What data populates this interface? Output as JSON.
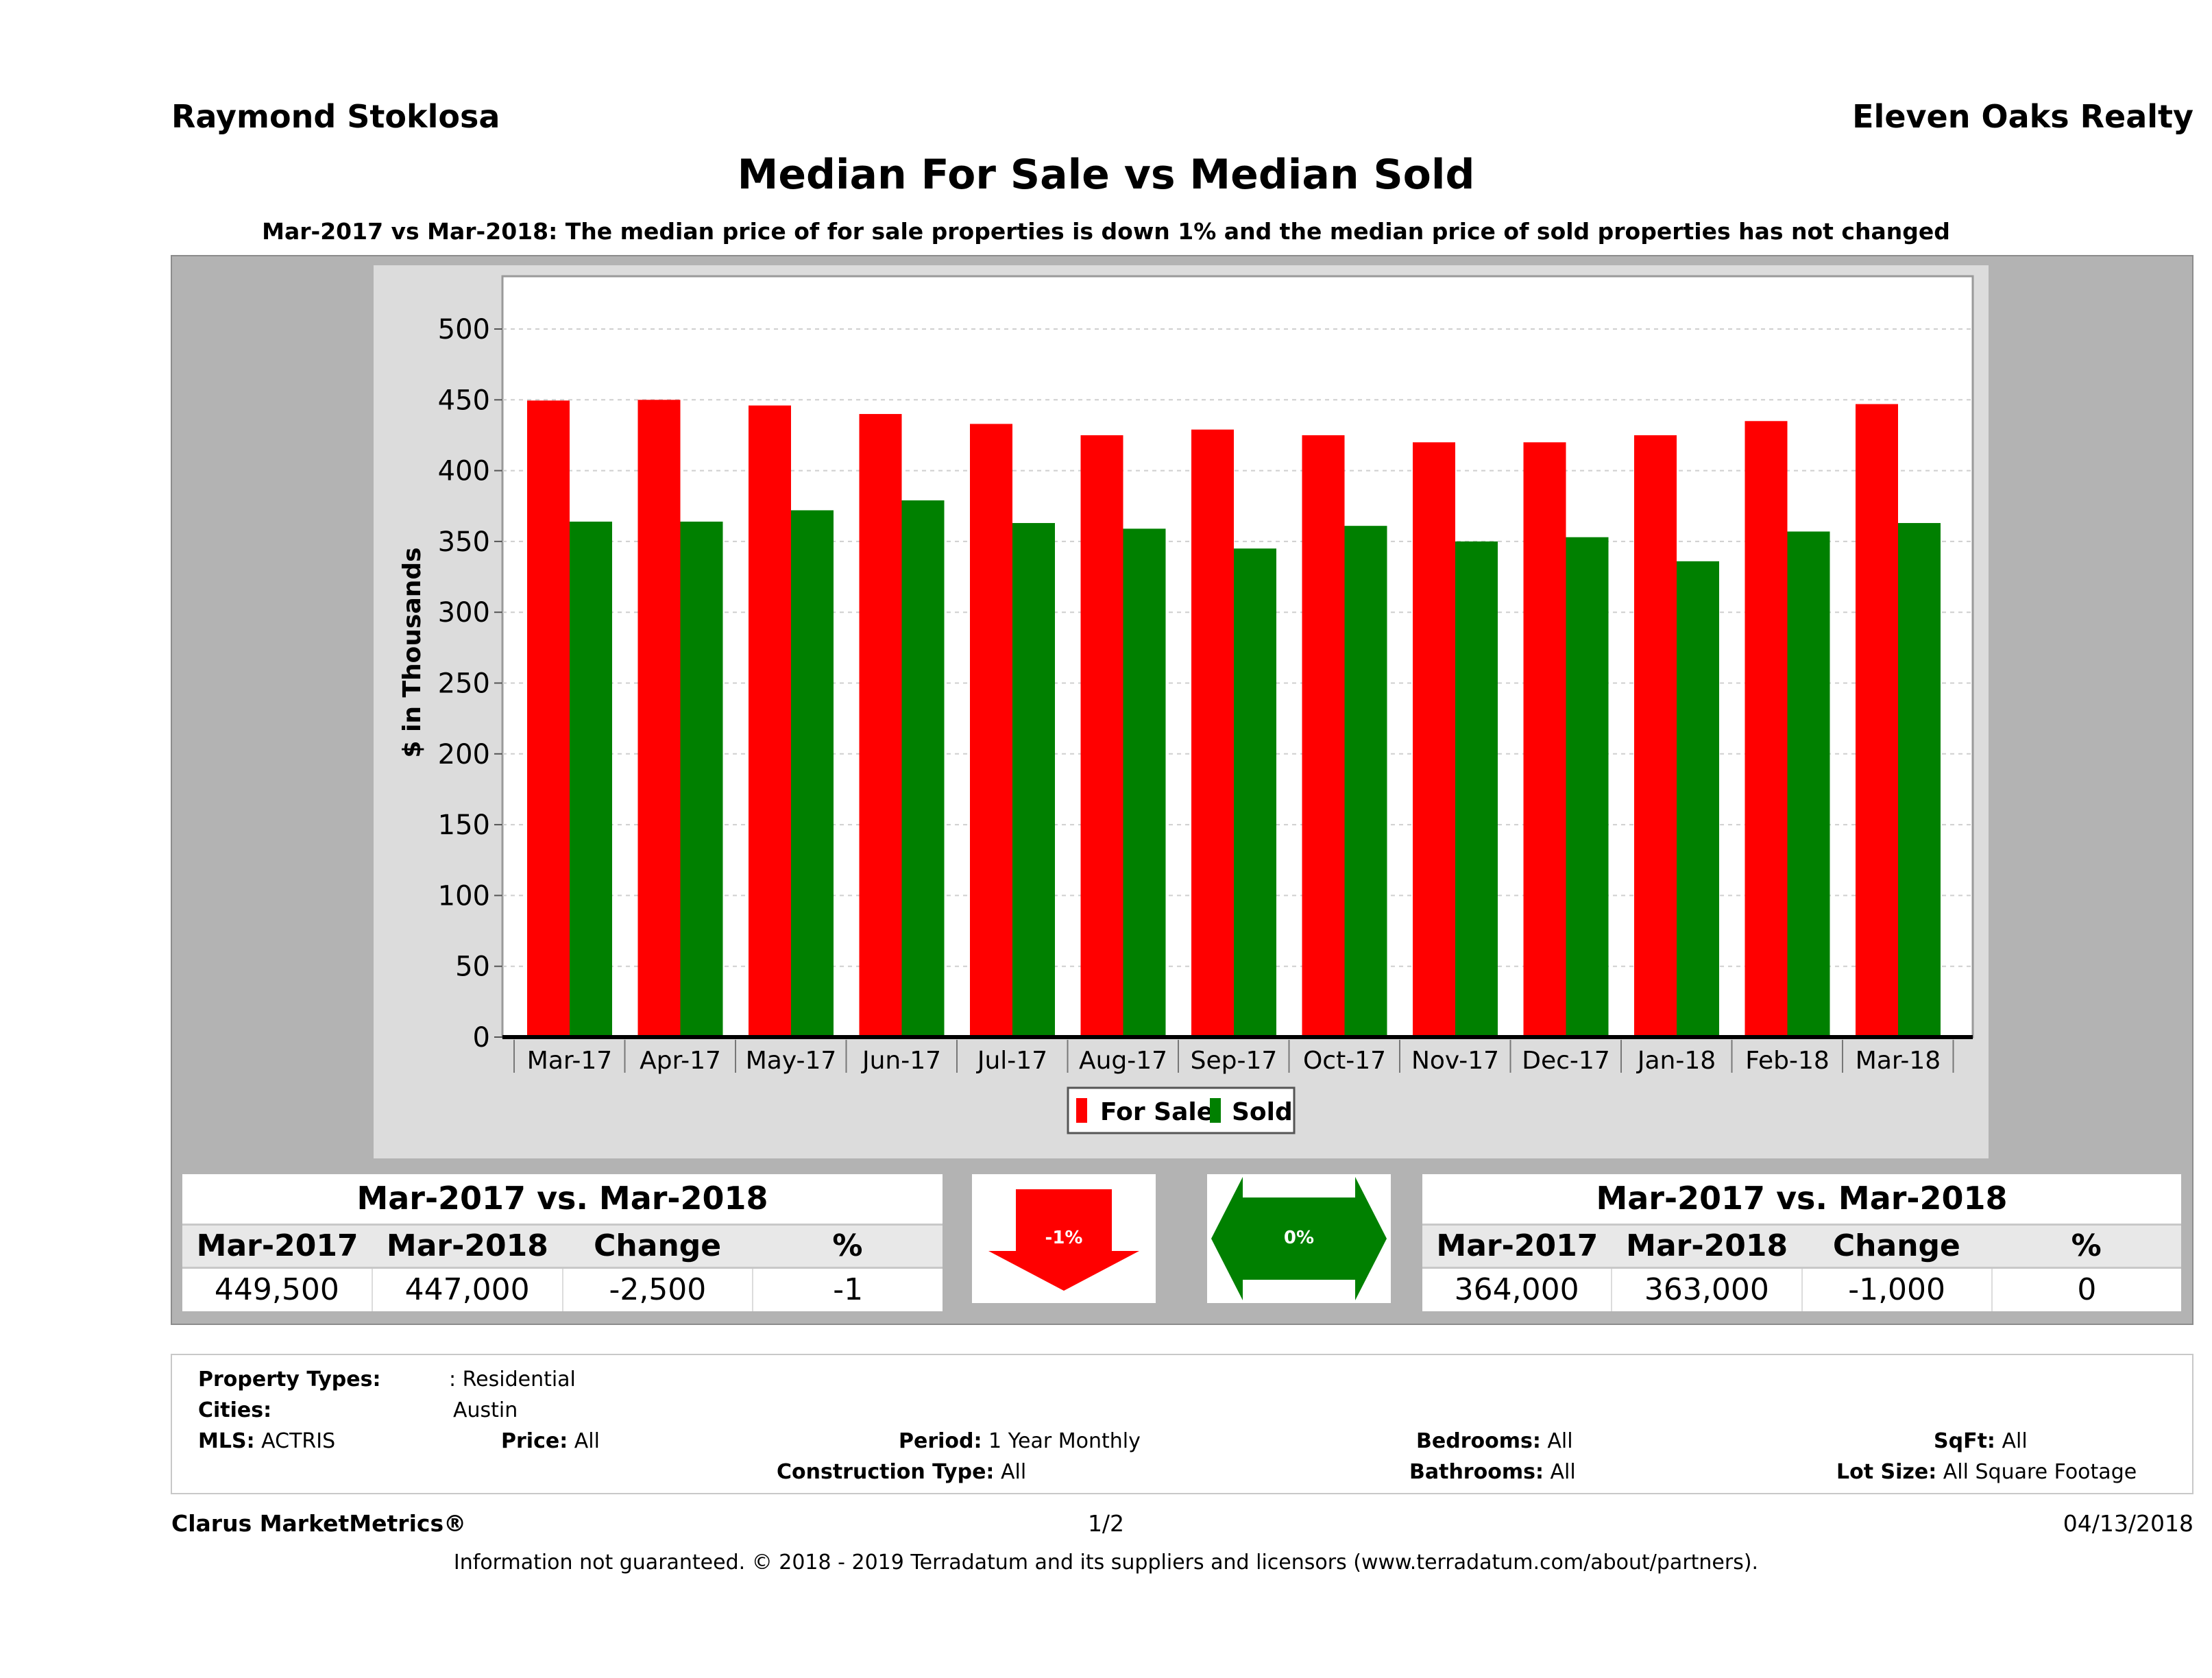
{
  "header": {
    "agent": "Raymond Stoklosa",
    "company": "Eleven Oaks Realty",
    "title": "Median For Sale vs Median Sold",
    "subtitle": "Mar-2017 vs Mar-2018: The median price of for sale properties is down 1% and the median price of sold properties has not changed"
  },
  "colors": {
    "for_sale": "#ff0000",
    "sold": "#008000",
    "panel": "#b3b3b3",
    "chart_bg": "#dcdcdc"
  },
  "chart_data": {
    "type": "bar",
    "ylabel": "$ in Thousands",
    "ylim": [
      0,
      530
    ],
    "yticks": [
      0,
      50,
      100,
      150,
      200,
      250,
      300,
      350,
      400,
      450,
      500
    ],
    "categories": [
      "Mar-17",
      "Apr-17",
      "May-17",
      "Jun-17",
      "Jul-17",
      "Aug-17",
      "Sep-17",
      "Oct-17",
      "Nov-17",
      "Dec-17",
      "Jan-18",
      "Feb-18",
      "Mar-18"
    ],
    "series": [
      {
        "name": "For Sale",
        "color": "#ff0000",
        "values": [
          449.5,
          450,
          446,
          440,
          433,
          425,
          429,
          425,
          420,
          420,
          425,
          435,
          447
        ]
      },
      {
        "name": "Sold",
        "color": "#008000",
        "values": [
          364,
          364,
          372,
          379,
          363,
          359,
          345,
          361,
          350,
          353,
          336,
          357,
          363
        ]
      }
    ],
    "legend": "bottom-center",
    "grid": true
  },
  "stats_for_sale": {
    "title": "Mar-2017 vs. Mar-2018",
    "headers": [
      "Mar-2017",
      "Mar-2018",
      "Change",
      "%"
    ],
    "values": [
      "449,500",
      "447,000",
      "-2,500",
      "-1"
    ]
  },
  "stats_sold": {
    "title": "Mar-2017 vs. Mar-2018",
    "headers": [
      "Mar-2017",
      "Mar-2018",
      "Change",
      "%"
    ],
    "values": [
      "364,000",
      "363,000",
      "-1,000",
      "0"
    ]
  },
  "indicators": {
    "for_sale_change": "-1%",
    "sold_change": "0%"
  },
  "criteria": {
    "property_types_label": "Property Types:",
    "property_types_value": ": Residential",
    "cities_label": "Cities:",
    "cities_value": "Austin",
    "mls_label": "MLS:",
    "mls_value": "ACTRIS",
    "price_label": "Price:",
    "price_value": "All",
    "period_label": "Period:",
    "period_value": "1 Year Monthly",
    "construction_label": "Construction Type:",
    "construction_value": "All",
    "bedrooms_label": "Bedrooms:",
    "bedrooms_value": "All",
    "bathrooms_label": "Bathrooms:",
    "bathrooms_value": "All",
    "sqft_label": "SqFt:",
    "sqft_value": "All",
    "lot_label": "Lot Size:",
    "lot_value": "All Square Footage"
  },
  "footer": {
    "brand": "Clarus MarketMetrics®",
    "page": "1/2",
    "date": "04/13/2018",
    "disclaimer": "Information not guaranteed. © 2018 - 2019 Terradatum and its suppliers and licensors (www.terradatum.com/about/partners)."
  }
}
